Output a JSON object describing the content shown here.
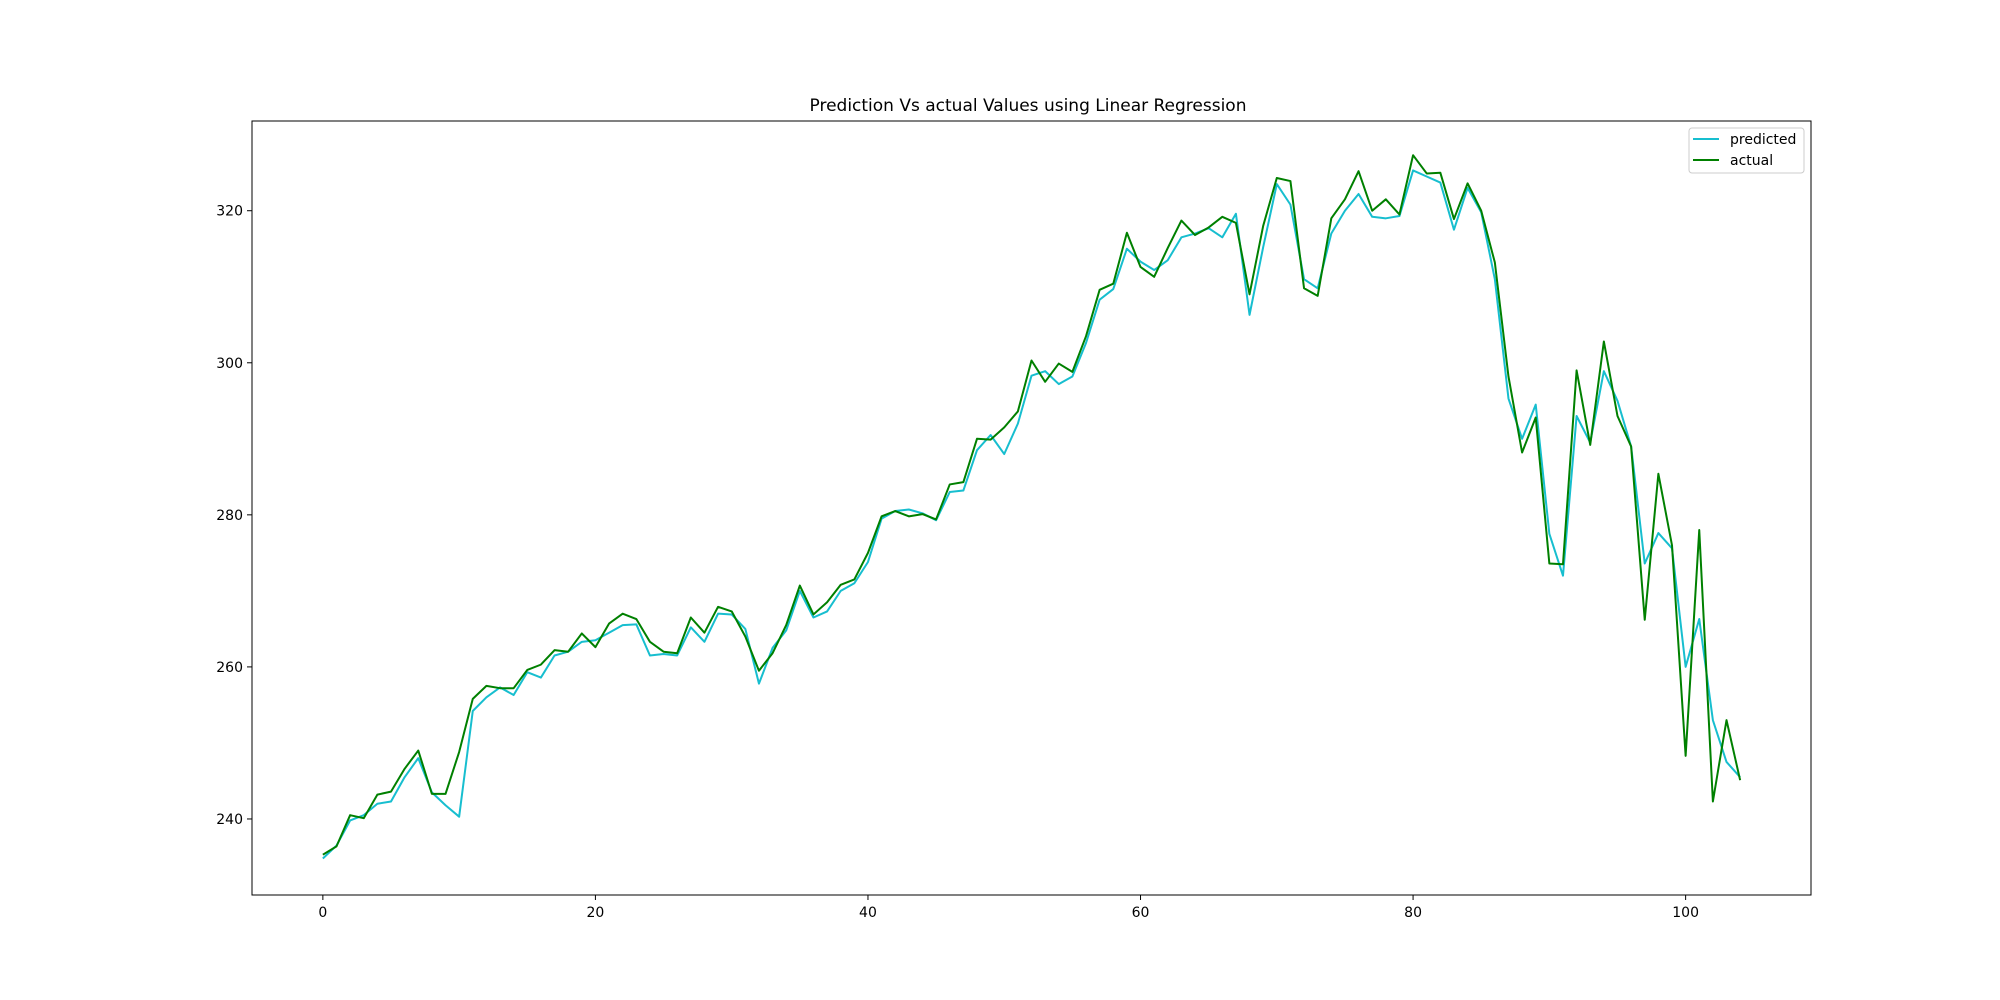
{
  "chart_data": {
    "type": "line",
    "title": "Prediction Vs actual Values using Linear Regression",
    "xlabel": "",
    "ylabel": "",
    "xlim": [
      -5.2,
      109.2
    ],
    "ylim": [
      230,
      331.8
    ],
    "x_ticks": [
      0,
      20,
      40,
      60,
      80,
      100
    ],
    "y_ticks": [
      240,
      260,
      280,
      300,
      320
    ],
    "grid": false,
    "legend_position": "top-right",
    "series": [
      {
        "name": "predicted",
        "color": "#17becf",
        "values": [
          234.8,
          236.5,
          239.8,
          240.5,
          242.0,
          242.3,
          245.5,
          248.0,
          243.5,
          241.8,
          240.3,
          254.2,
          256.0,
          257.3,
          256.3,
          259.3,
          258.6,
          261.5,
          262.0,
          263.3,
          263.5,
          264.5,
          265.5,
          265.6,
          261.5,
          261.7,
          261.5,
          265.2,
          263.3,
          267.0,
          266.9,
          265.0,
          257.8,
          262.5,
          264.8,
          270.0,
          266.5,
          267.3,
          270.0,
          271.0,
          273.8,
          279.5,
          280.5,
          280.7,
          280.2,
          279.3,
          283.0,
          283.2,
          288.5,
          290.5,
          288.0,
          292.0,
          298.3,
          298.9,
          297.2,
          298.2,
          302.6,
          308.3,
          309.7,
          315.0,
          313.3,
          312.2,
          313.5,
          316.5,
          317.0,
          317.7,
          316.5,
          319.6,
          306.3,
          315.2,
          323.5,
          320.8,
          311.0,
          309.8,
          317.0,
          320.0,
          322.2,
          319.2,
          319.0,
          319.3,
          325.3,
          324.5,
          323.7,
          317.5,
          323.0,
          319.8,
          311.0,
          295.3,
          290.0,
          294.5,
          277.5,
          272.0,
          293.0,
          289.5,
          298.9,
          295.0,
          289.0,
          273.6,
          277.6,
          275.6,
          260.0,
          266.3,
          253.0,
          247.5,
          245.5
        ]
      },
      {
        "name": "actual",
        "color": "#008000",
        "values": [
          235.3,
          236.4,
          240.5,
          240.1,
          243.2,
          243.6,
          246.6,
          249.0,
          243.3,
          243.3,
          248.8,
          255.8,
          257.5,
          257.2,
          257.2,
          259.6,
          260.3,
          262.2,
          262.0,
          264.4,
          262.6,
          265.7,
          267.0,
          266.3,
          263.3,
          262.0,
          261.8,
          266.5,
          264.5,
          267.9,
          267.3,
          264.0,
          259.5,
          261.8,
          265.5,
          270.7,
          266.9,
          268.5,
          270.8,
          271.5,
          275.0,
          279.8,
          280.5,
          279.8,
          280.1,
          279.4,
          284.0,
          284.3,
          290.0,
          289.9,
          291.5,
          293.6,
          300.3,
          297.5,
          299.9,
          298.8,
          303.5,
          309.6,
          310.4,
          317.1,
          312.6,
          311.3,
          315.1,
          318.7,
          316.8,
          317.8,
          319.2,
          318.4,
          309.0,
          318.0,
          324.3,
          323.9,
          309.8,
          308.8,
          319.0,
          321.5,
          325.2,
          320.0,
          321.5,
          319.5,
          327.3,
          324.9,
          325.0,
          318.9,
          323.6,
          320.0,
          313.2,
          298.2,
          288.2,
          292.8,
          273.6,
          273.5,
          299.0,
          289.2,
          302.8,
          293.0,
          289.0,
          266.2,
          285.4,
          276.0,
          248.3,
          278.0,
          242.3,
          253.0,
          245.1
        ]
      }
    ]
  }
}
